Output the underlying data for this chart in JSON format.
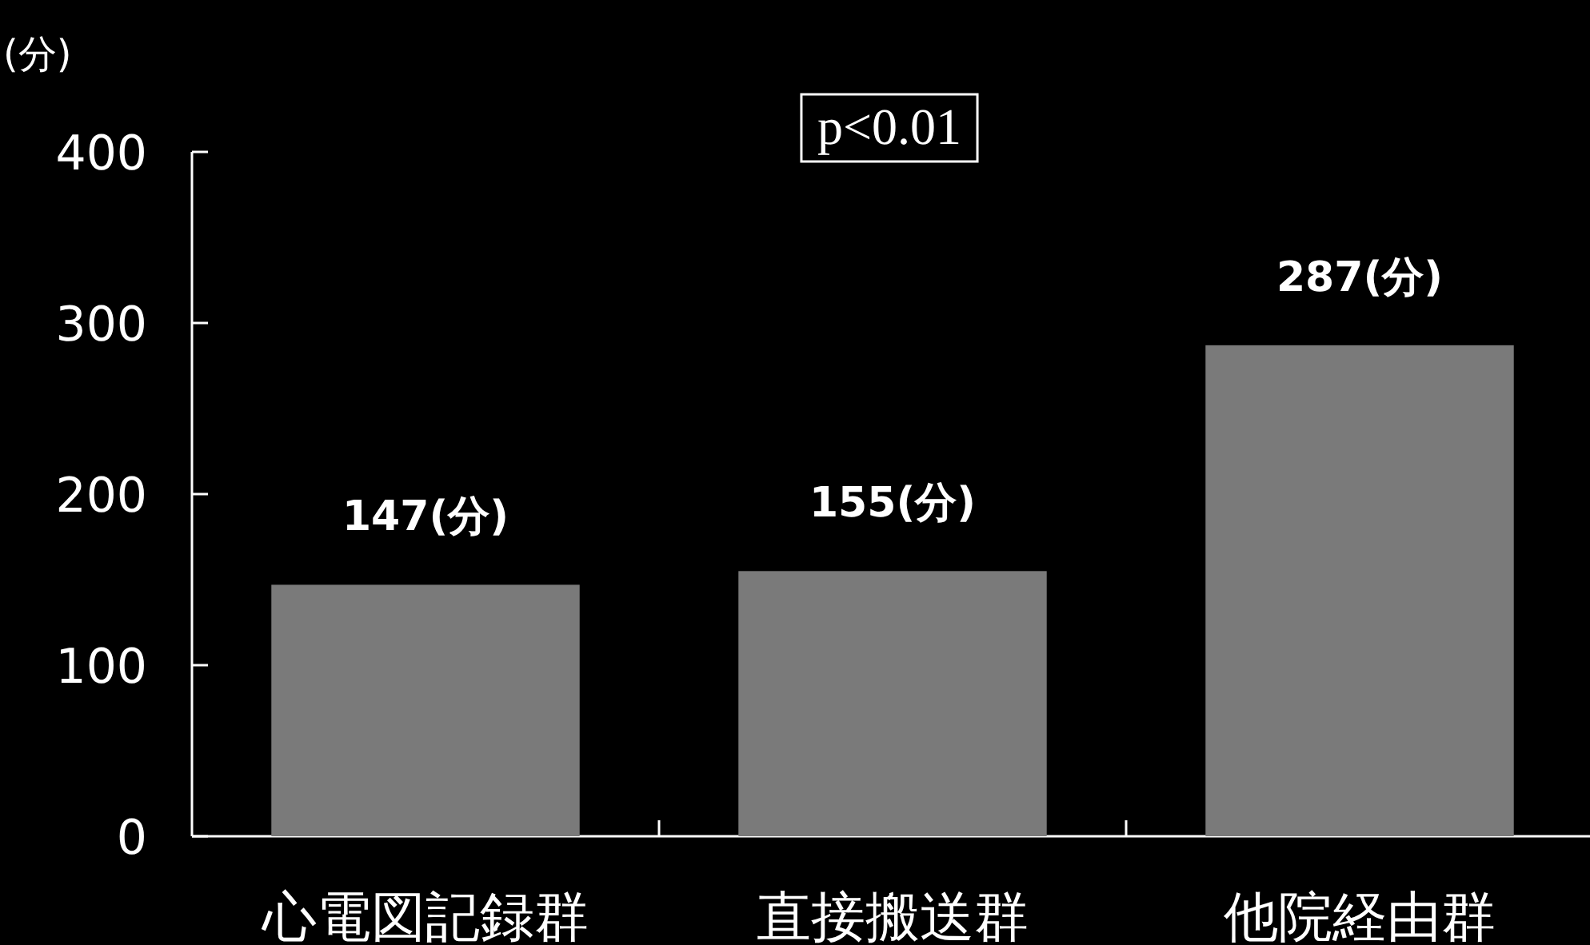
{
  "chart_data": {
    "type": "bar",
    "ylabel": "(分)",
    "categories": [
      "心電図記録群",
      "直接搬送群",
      "他院経由群"
    ],
    "values": [
      147,
      155,
      287
    ],
    "value_labels": [
      "147(分)",
      "155(分)",
      "287(分)"
    ],
    "color": "#7a7a7a",
    "ylim": [
      0,
      400
    ],
    "yticks": [
      0,
      100,
      200,
      300,
      400
    ],
    "annotations": [
      "p<0.01"
    ]
  }
}
